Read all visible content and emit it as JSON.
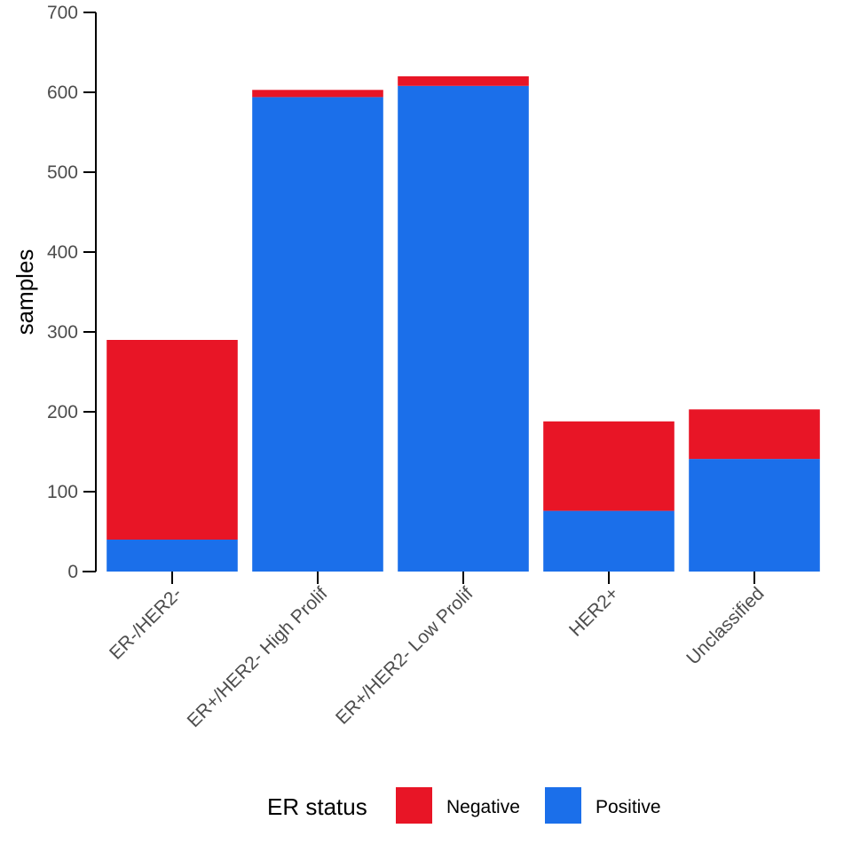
{
  "chart_data": {
    "type": "bar",
    "stacked": true,
    "categories": [
      "ER-/HER2-",
      "ER+/HER2- High Prolif",
      "ER+/HER2- Low Prolif",
      "HER2+",
      "Unclassified"
    ],
    "series": [
      {
        "name": "Positive",
        "values": [
          40,
          594,
          608,
          76,
          141
        ]
      },
      {
        "name": "Negative",
        "values": [
          250,
          9,
          12,
          112,
          62
        ]
      }
    ],
    "ylabel": "samples",
    "xlabel": "",
    "ylim": [
      0,
      700
    ],
    "yticks": [
      0,
      100,
      200,
      300,
      400,
      500,
      600,
      700
    ],
    "legend": {
      "title": "ER status",
      "position": "bottom",
      "entries": [
        "Negative",
        "Positive"
      ]
    },
    "colors": {
      "Negative": "#e81526",
      "Positive": "#1b6fea"
    },
    "grid": false
  }
}
